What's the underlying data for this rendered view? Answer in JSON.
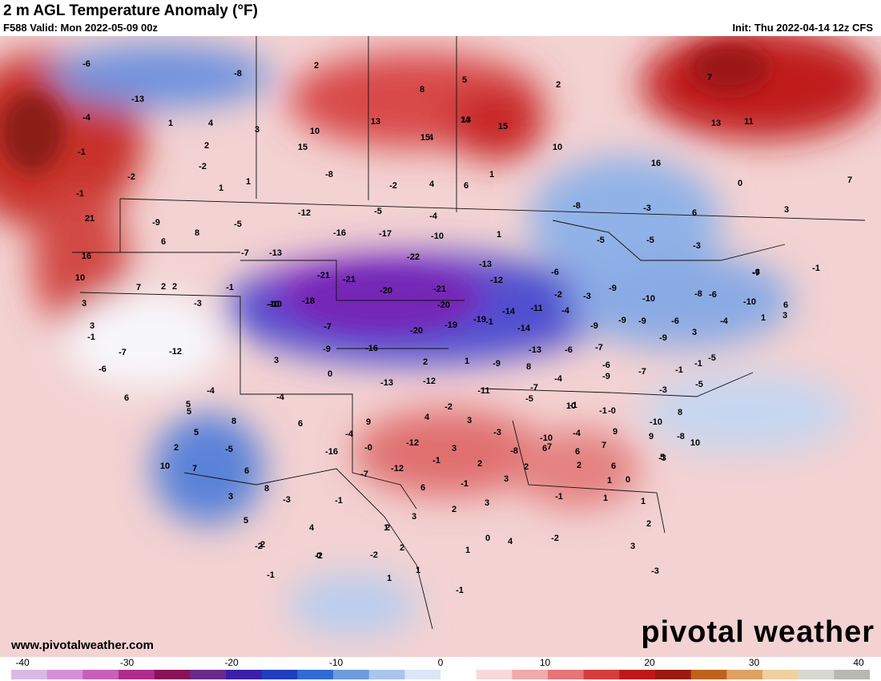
{
  "header": {
    "title": "2 m AGL Temperature Anomaly (°F)",
    "valid": "F588 Valid: Mon 2022-05-09 00z",
    "init": "Init: Thu 2022-04-14 12z CFS"
  },
  "footer": {
    "website": "www.pivotalweather.com",
    "brand": "pivotal weather"
  },
  "colorbar": {
    "ticks": [
      "-40",
      "-30",
      "-20",
      "-10",
      "0",
      "10",
      "20",
      "30",
      "40"
    ],
    "colors": [
      "#d9b8e6",
      "#d48fd6",
      "#c85fb8",
      "#b02c8c",
      "#8a1259",
      "#6a2a8a",
      "#3a1fa8",
      "#1f3fbf",
      "#2f6ad6",
      "#6c9be0",
      "#a9c5ec",
      "#dbe7f6",
      "#ffffff",
      "#f7d9d9",
      "#f0aaaa",
      "#e67575",
      "#d63e3e",
      "#c01818",
      "#9a1a10",
      "#c0621c",
      "#e0a060",
      "#f0d0a0",
      "#d8d8d0",
      "#b8b8b0"
    ]
  },
  "map_labels": [
    {
      "t": "-6"
    },
    {
      "t": "-8"
    },
    {
      "t": "2"
    },
    {
      "t": "5"
    },
    {
      "t": "2"
    },
    {
      "t": "-13"
    },
    {
      "t": "8"
    },
    {
      "t": "13"
    },
    {
      "t": "15"
    },
    {
      "t": "7"
    },
    {
      "t": "-4"
    },
    {
      "t": "1"
    },
    {
      "t": "4"
    },
    {
      "t": "3"
    },
    {
      "t": "10"
    },
    {
      "t": "13"
    },
    {
      "t": "14"
    },
    {
      "t": "15"
    },
    {
      "t": "13"
    },
    {
      "t": "11"
    },
    {
      "t": "-1"
    },
    {
      "t": "2"
    },
    {
      "t": "15"
    },
    {
      "t": "4"
    },
    {
      "t": "10"
    },
    {
      "t": "-2"
    },
    {
      "t": "-2"
    },
    {
      "t": "-8"
    },
    {
      "t": "16"
    },
    {
      "t": "-1"
    },
    {
      "t": "1"
    },
    {
      "t": "-2"
    },
    {
      "t": "1"
    },
    {
      "t": "4"
    },
    {
      "t": "1"
    },
    {
      "t": "6"
    },
    {
      "t": "0"
    },
    {
      "t": "7"
    },
    {
      "t": "-9"
    },
    {
      "t": "-12"
    },
    {
      "t": "-5"
    },
    {
      "t": "-4"
    },
    {
      "t": "-8"
    },
    {
      "t": "-3"
    },
    {
      "t": "6"
    },
    {
      "t": "3"
    },
    {
      "t": "21"
    },
    {
      "t": "8"
    },
    {
      "t": "6"
    },
    {
      "t": "-5"
    },
    {
      "t": "-16"
    },
    {
      "t": "-17"
    },
    {
      "t": "-10"
    },
    {
      "t": "1"
    },
    {
      "t": "-5"
    },
    {
      "t": "-7"
    },
    {
      "t": "-13"
    },
    {
      "t": "-22"
    },
    {
      "t": "-13"
    },
    {
      "t": "-5"
    },
    {
      "t": "-3"
    },
    {
      "t": "16"
    },
    {
      "t": "-6"
    },
    {
      "t": "-21"
    },
    {
      "t": "-21"
    },
    {
      "t": "-21"
    },
    {
      "t": "-12"
    },
    {
      "t": "-6"
    },
    {
      "t": "-1"
    },
    {
      "t": "2"
    },
    {
      "t": "10"
    },
    {
      "t": "7"
    },
    {
      "t": "2"
    },
    {
      "t": "-1"
    },
    {
      "t": "-3"
    },
    {
      "t": "-9"
    },
    {
      "t": "-6"
    },
    {
      "t": "-7"
    },
    {
      "t": "-10"
    },
    {
      "t": "-18"
    },
    {
      "t": "-20"
    },
    {
      "t": "-20"
    },
    {
      "t": "-11"
    },
    {
      "t": "-2"
    },
    {
      "t": "-3"
    },
    {
      "t": "-10"
    },
    {
      "t": "-8"
    },
    {
      "t": "-10"
    },
    {
      "t": "6"
    },
    {
      "t": "3"
    },
    {
      "t": "-10"
    },
    {
      "t": "-7"
    },
    {
      "t": "-16"
    },
    {
      "t": "-20"
    },
    {
      "t": "-19"
    },
    {
      "t": "-19"
    },
    {
      "t": "-14"
    },
    {
      "t": "-4"
    },
    {
      "t": "-9"
    },
    {
      "t": "-9"
    },
    {
      "t": "-9"
    },
    {
      "t": "-6"
    },
    {
      "t": "-4"
    },
    {
      "t": "1"
    },
    {
      "t": "3"
    },
    {
      "t": "-1"
    },
    {
      "t": "-7"
    },
    {
      "t": "-12"
    },
    {
      "t": "-9"
    },
    {
      "t": "-9"
    },
    {
      "t": "3"
    },
    {
      "t": "-1"
    },
    {
      "t": "-6"
    },
    {
      "t": "-7"
    },
    {
      "t": "-14"
    },
    {
      "t": "-13"
    },
    {
      "t": "-9"
    },
    {
      "t": "8"
    },
    {
      "t": "-6"
    },
    {
      "t": "-5"
    },
    {
      "t": "-6"
    },
    {
      "t": "3"
    },
    {
      "t": "2"
    },
    {
      "t": "1"
    },
    {
      "t": "0"
    },
    {
      "t": "-13"
    },
    {
      "t": "-12"
    },
    {
      "t": "-7"
    },
    {
      "t": "-4"
    },
    {
      "t": "-9"
    },
    {
      "t": "-7"
    },
    {
      "t": "-1"
    },
    {
      "t": "-3"
    },
    {
      "t": "-11"
    },
    {
      "t": "-5"
    },
    {
      "t": "-1"
    },
    {
      "t": "-0"
    },
    {
      "t": "-5"
    },
    {
      "t": "-1"
    },
    {
      "t": "-8"
    },
    {
      "t": "-3"
    },
    {
      "t": "-4"
    },
    {
      "t": "-4"
    },
    {
      "t": "6"
    },
    {
      "t": "10"
    },
    {
      "t": "5"
    },
    {
      "t": "5"
    },
    {
      "t": "9"
    },
    {
      "t": "4"
    },
    {
      "t": "-2"
    },
    {
      "t": "3"
    },
    {
      "t": "-3"
    },
    {
      "t": "-10"
    },
    {
      "t": "-4"
    },
    {
      "t": "-1"
    },
    {
      "t": "-10"
    },
    {
      "t": "8"
    },
    {
      "t": "10"
    },
    {
      "t": "5"
    },
    {
      "t": "8"
    },
    {
      "t": "6"
    },
    {
      "t": "2"
    },
    {
      "t": "-4"
    },
    {
      "t": "-0"
    },
    {
      "t": "-12"
    },
    {
      "t": "3"
    },
    {
      "t": "7"
    },
    {
      "t": "9"
    },
    {
      "t": "9"
    },
    {
      "t": "5"
    },
    {
      "t": "-5"
    },
    {
      "t": "-16"
    },
    {
      "t": "-8"
    },
    {
      "t": "6"
    },
    {
      "t": "2"
    },
    {
      "t": "6"
    },
    {
      "t": "6"
    },
    {
      "t": "10"
    },
    {
      "t": "7"
    },
    {
      "t": "6"
    },
    {
      "t": "-7"
    },
    {
      "t": "-12"
    },
    {
      "t": "-1"
    },
    {
      "t": "2"
    },
    {
      "t": "2"
    },
    {
      "t": "7"
    },
    {
      "t": "8"
    },
    {
      "t": "3"
    },
    {
      "t": "-3"
    },
    {
      "t": "6"
    },
    {
      "t": "-1"
    },
    {
      "t": "3"
    },
    {
      "t": "3"
    },
    {
      "t": "-1"
    },
    {
      "t": "1"
    },
    {
      "t": "0"
    },
    {
      "t": "3"
    },
    {
      "t": "5"
    },
    {
      "t": "-1"
    },
    {
      "t": "2"
    },
    {
      "t": "1"
    },
    {
      "t": "2"
    },
    {
      "t": "4"
    },
    {
      "t": "3"
    },
    {
      "t": "2"
    },
    {
      "t": "0"
    },
    {
      "t": "1"
    },
    {
      "t": "2"
    },
    {
      "t": "-2"
    },
    {
      "t": "-2"
    },
    {
      "t": "1"
    },
    {
      "t": "1"
    },
    {
      "t": "4"
    },
    {
      "t": "-2"
    },
    {
      "t": "3"
    },
    {
      "t": "-3"
    },
    {
      "t": "-1"
    },
    {
      "t": "0"
    },
    {
      "t": "-2"
    },
    {
      "t": "2"
    },
    {
      "t": "1"
    },
    {
      "t": "1"
    },
    {
      "t": "-1"
    }
  ]
}
